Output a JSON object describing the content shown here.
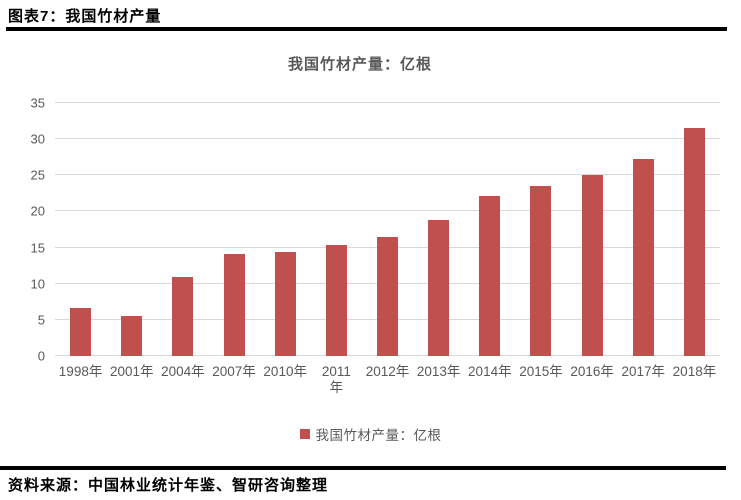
{
  "page": {
    "figure_label": "图表7：我国竹材产量",
    "source_note": "资料来源：中国林业统计年鉴、智研咨询整理"
  },
  "chart_data": {
    "type": "bar",
    "title": "我国竹材产量：亿根",
    "categories": [
      "1998年",
      "2001年",
      "2004年",
      "2007年",
      "2010年",
      "2011\n年",
      "2012年",
      "2013年",
      "2014年",
      "2015年",
      "2016年",
      "2017年",
      "2018年"
    ],
    "values": [
      6.7,
      5.6,
      11.0,
      14.1,
      14.4,
      15.4,
      16.4,
      18.8,
      22.2,
      23.5,
      25.1,
      27.2,
      31.6
    ],
    "xlabel": "",
    "ylabel": "",
    "ylim": [
      0,
      35
    ],
    "y_ticks": [
      0,
      5,
      10,
      15,
      20,
      25,
      30,
      35
    ],
    "grid": true,
    "legend_position": "bottom",
    "legend": [
      {
        "label": "我国竹材产量：亿根",
        "color": "#c0504d"
      }
    ],
    "colors": {
      "bar": "#c0504d",
      "gridline": "#d9d9d9",
      "axis_text": "#595959",
      "title_text": "#595959",
      "rule": "#000000"
    }
  }
}
